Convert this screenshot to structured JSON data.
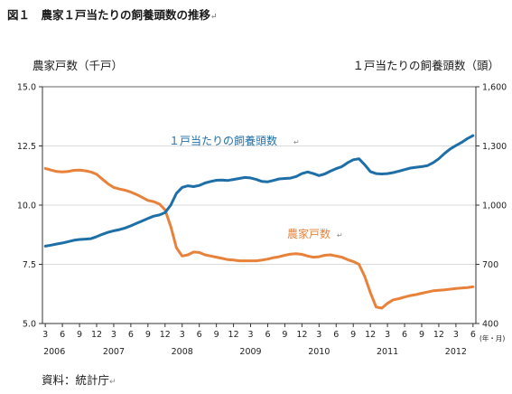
{
  "figure": {
    "title": "図１　農家１戸当たりの飼養頭数の推移",
    "title_mark": "↵",
    "source": "資料：統計庁",
    "source_mark": "↵"
  },
  "chart_data": {
    "type": "line",
    "x_unit": "(年・月)",
    "y_left": {
      "label": "農家戸数（千戸）",
      "ylim": [
        5.0,
        15.0
      ],
      "ticks": [
        "5.0",
        "7.5",
        "10.0",
        "12.5",
        "15.0"
      ]
    },
    "y_right": {
      "label": "１戸当たりの飼養頭数（頭）",
      "ylim": [
        400,
        1600
      ],
      "ticks": [
        "400",
        "700",
        "1,000",
        "1,300",
        "1,600"
      ]
    },
    "x_month_ticks": [
      "3",
      "6",
      "9",
      "12",
      "3",
      "6",
      "9",
      "12",
      "3",
      "6",
      "9",
      "12",
      "3",
      "6",
      "9",
      "12",
      "3",
      "6",
      "9",
      "12",
      "3",
      "6",
      "9",
      "12",
      "3",
      "6"
    ],
    "x_year_labels": [
      "2006",
      "2007",
      "2008",
      "2009",
      "2010",
      "2011",
      "2012"
    ],
    "grid": "horizontal",
    "series": [
      {
        "name": "農家戸数",
        "axis": "left",
        "color": "#e8823a",
        "x": [
          0,
          1,
          2,
          3,
          4,
          5,
          6,
          7,
          8,
          9,
          10,
          11,
          12,
          13,
          14,
          15,
          16,
          17,
          18,
          19,
          20,
          21,
          22,
          23,
          24,
          25,
          26,
          27,
          28,
          29,
          30,
          31,
          32,
          33,
          34,
          35,
          36,
          37,
          38,
          39,
          40,
          41,
          42,
          43,
          44,
          45,
          46,
          47,
          48,
          49,
          50,
          51,
          52,
          53,
          54,
          55,
          56,
          57,
          58,
          59,
          60,
          61,
          62,
          63,
          64,
          65,
          66,
          67,
          68,
          69,
          70,
          71,
          72,
          73,
          74,
          75
        ],
        "values": [
          11.55,
          11.48,
          11.42,
          11.4,
          11.42,
          11.47,
          11.48,
          11.45,
          11.4,
          11.3,
          11.1,
          10.9,
          10.75,
          10.68,
          10.63,
          10.55,
          10.45,
          10.33,
          10.2,
          10.15,
          10.05,
          9.8,
          9.1,
          8.2,
          7.85,
          7.9,
          8.02,
          8.0,
          7.9,
          7.85,
          7.8,
          7.75,
          7.7,
          7.68,
          7.65,
          7.65,
          7.65,
          7.65,
          7.68,
          7.72,
          7.78,
          7.82,
          7.88,
          7.93,
          7.95,
          7.92,
          7.85,
          7.8,
          7.82,
          7.88,
          7.9,
          7.85,
          7.8,
          7.7,
          7.62,
          7.5,
          7.0,
          6.3,
          5.7,
          5.65,
          5.85,
          6.0,
          6.05,
          6.12,
          6.18,
          6.22,
          6.28,
          6.33,
          6.38,
          6.4,
          6.42,
          6.45,
          6.48,
          6.5,
          6.52,
          6.55
        ],
        "label": "農家戸数",
        "label_mark": "↵"
      },
      {
        "name": "１戸当たりの飼養頭数",
        "axis": "right",
        "color": "#1e6fa8",
        "x": [
          0,
          1,
          2,
          3,
          4,
          5,
          6,
          7,
          8,
          9,
          10,
          11,
          12,
          13,
          14,
          15,
          16,
          17,
          18,
          19,
          20,
          21,
          22,
          23,
          24,
          25,
          26,
          27,
          28,
          29,
          30,
          31,
          32,
          33,
          34,
          35,
          36,
          37,
          38,
          39,
          40,
          41,
          42,
          43,
          44,
          45,
          46,
          47,
          48,
          49,
          50,
          51,
          52,
          53,
          54,
          55,
          56,
          57,
          58,
          59,
          60,
          61,
          62,
          63,
          64,
          65,
          66,
          67,
          68,
          69,
          70,
          71,
          72,
          73,
          74,
          75
        ],
        "values": [
          792,
          797,
          803,
          808,
          815,
          822,
          826,
          828,
          830,
          840,
          852,
          862,
          870,
          876,
          884,
          895,
          908,
          920,
          932,
          944,
          950,
          962,
          1000,
          1060,
          1090,
          1098,
          1094,
          1100,
          1112,
          1120,
          1126,
          1127,
          1125,
          1130,
          1135,
          1140,
          1138,
          1130,
          1120,
          1118,
          1125,
          1133,
          1135,
          1137,
          1145,
          1160,
          1168,
          1160,
          1150,
          1158,
          1172,
          1185,
          1195,
          1215,
          1230,
          1235,
          1205,
          1170,
          1160,
          1158,
          1160,
          1165,
          1172,
          1180,
          1188,
          1192,
          1195,
          1200,
          1215,
          1235,
          1262,
          1285,
          1302,
          1318,
          1337,
          1352
        ],
        "label": "１戸当たりの飼養頭数",
        "label_mark": "↵"
      }
    ]
  }
}
